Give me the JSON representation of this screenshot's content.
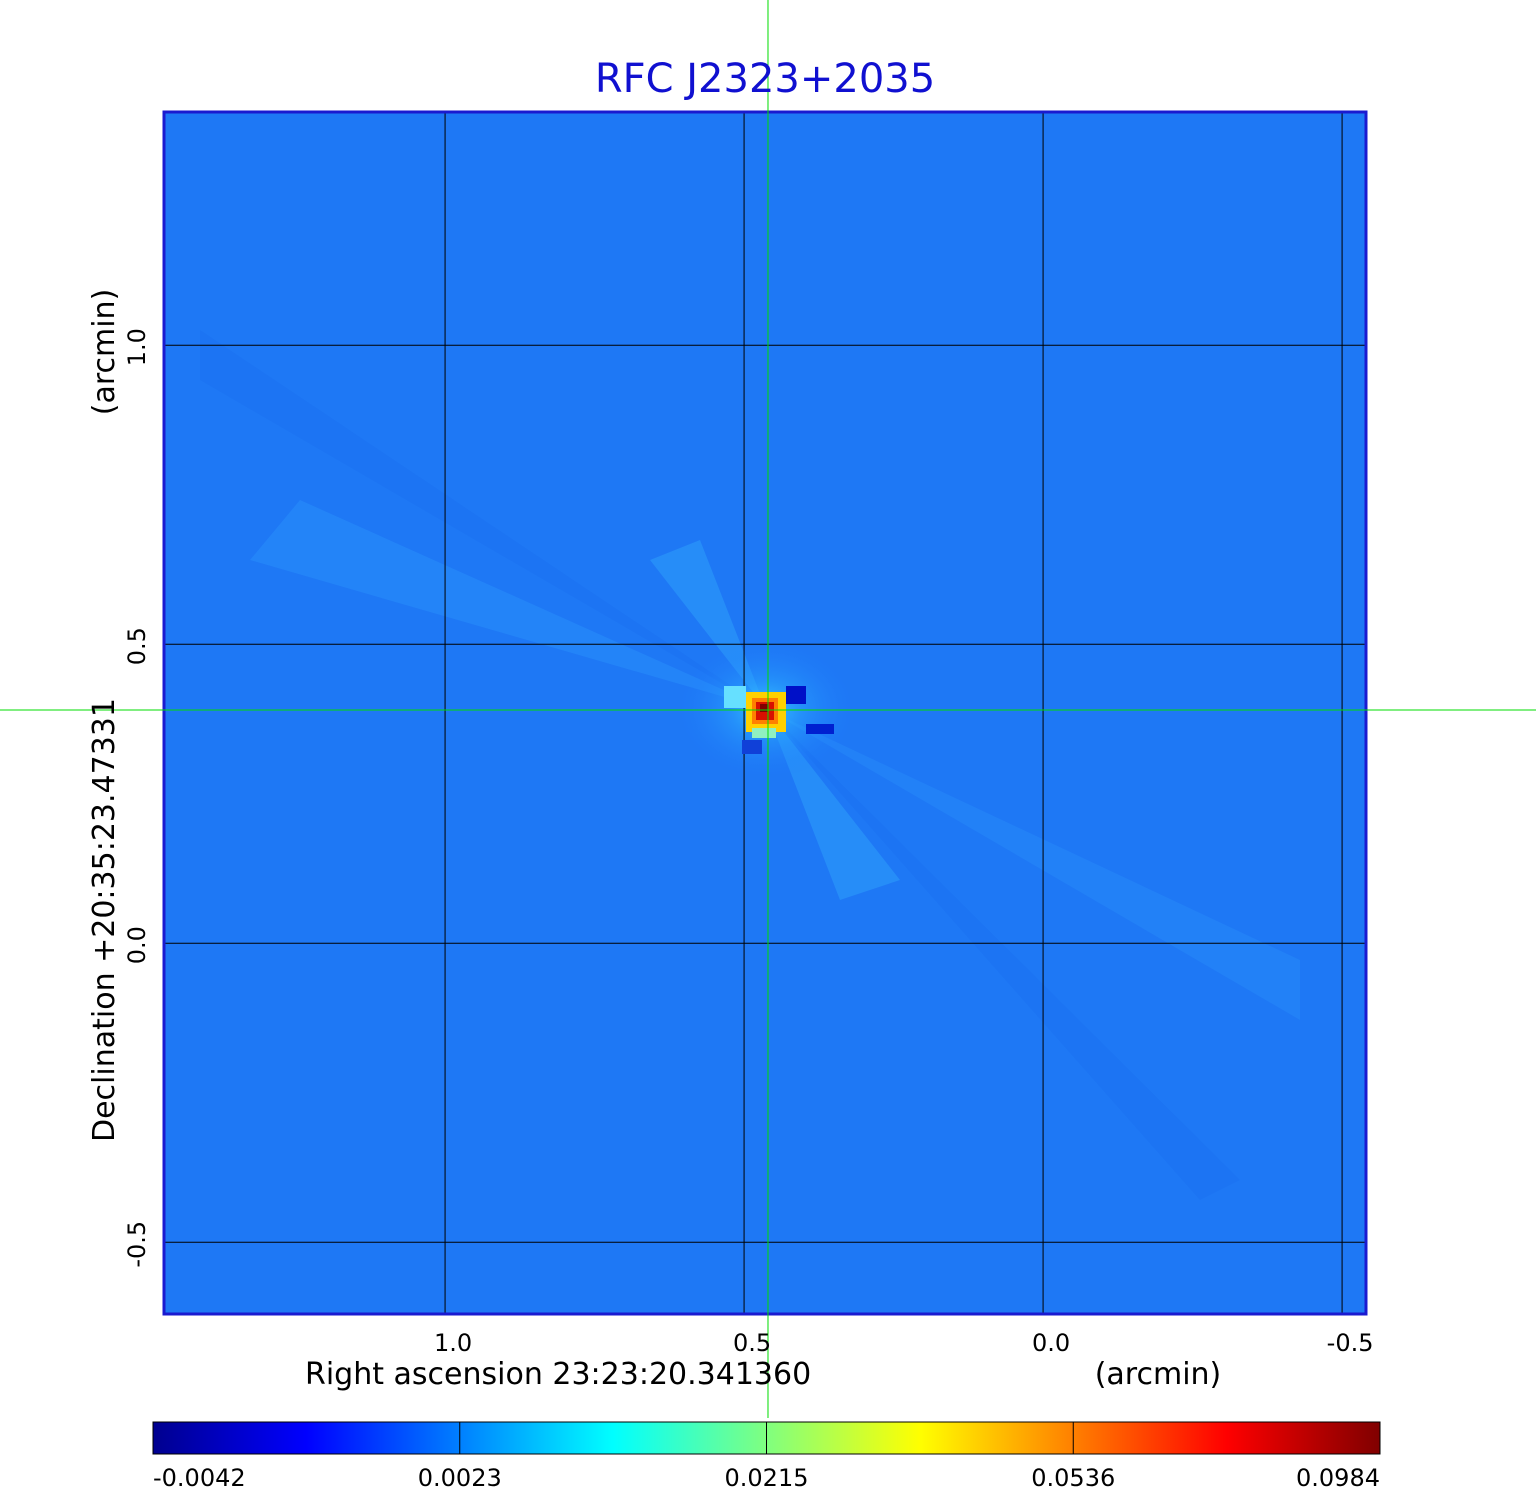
{
  "chart_data": {
    "type": "heatmap",
    "title": "RFC J2323+2035",
    "xlabel": "Right ascension  23:23:20.341360",
    "xunit": "(arcmin)",
    "ylabel": "Declination  +20:35:23.47331",
    "yunit": "(arcmin)",
    "x_ticks": [
      "1.0",
      "0.5",
      "0.0",
      "-0.5"
    ],
    "x_tick_values": [
      1.0,
      0.5,
      0.0,
      -0.5
    ],
    "y_ticks": [
      "1.0",
      "0.5",
      "0.0",
      "-0.5"
    ],
    "y_tick_values": [
      1.0,
      0.5,
      0.0,
      -0.5
    ],
    "xlim": [
      1.47,
      -0.54
    ],
    "ylim": [
      -0.62,
      1.39
    ],
    "grid": true,
    "crosshair": {
      "x": 0.46,
      "y": 0.39,
      "color": "#00dd00"
    },
    "source_peak": {
      "x": 0.46,
      "y": 0.39,
      "value": 0.0984
    },
    "background_level": 0.0,
    "colorbar": {
      "ticks": [
        "-0.0042",
        "0.0023",
        "0.0215",
        "0.0536",
        "0.0984"
      ],
      "values": [
        -0.0042,
        0.0023,
        0.0215,
        0.0536,
        0.0984
      ],
      "colormap": "jet"
    },
    "frame_color": "#1a1ad0"
  }
}
